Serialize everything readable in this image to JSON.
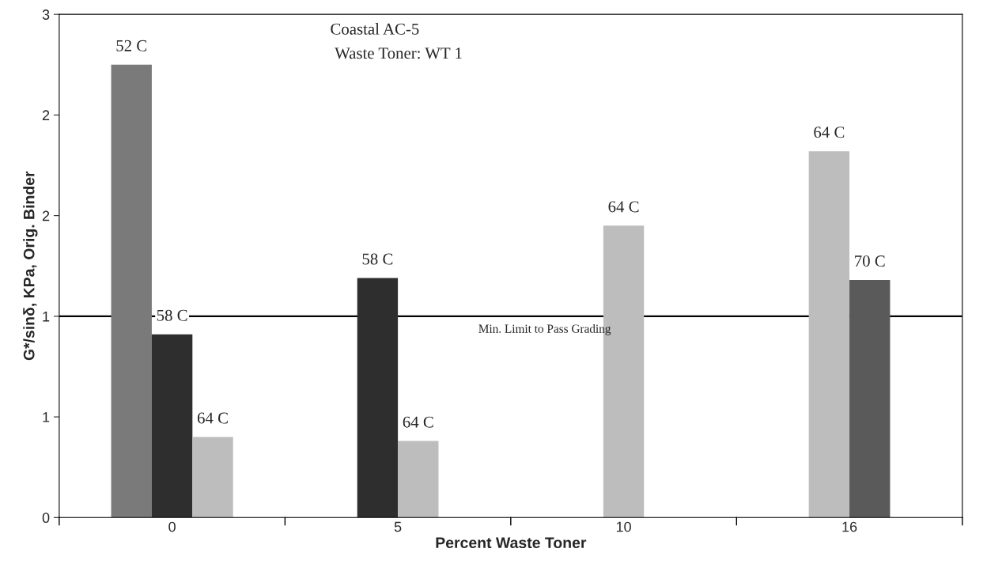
{
  "chart_data": {
    "type": "bar",
    "xlabel": "Percent Waste Toner",
    "ylabel": "G*/sinδ, KPa, Orig. Binder",
    "categories": [
      "0",
      "5",
      "10",
      "16"
    ],
    "series": [
      {
        "name": "52 C",
        "color": "#7a7a7a",
        "values": [
          2.25,
          null,
          null,
          null
        ]
      },
      {
        "name": "58 C",
        "color": "#2e2e2e",
        "values": [
          0.91,
          1.19,
          null,
          null
        ]
      },
      {
        "name": "64 C",
        "color": "#bdbdbd",
        "values": [
          0.4,
          0.38,
          1.45,
          1.82
        ]
      },
      {
        "name": "70 C",
        "color": "#5a5a5a",
        "values": [
          null,
          null,
          null,
          1.18
        ]
      }
    ],
    "ylim": [
      0,
      2.5
    ],
    "yticks": [
      0,
      {
        "value": 0.5,
        "label": "1"
      },
      1,
      {
        "value": 1.5,
        "label": "2"
      },
      2,
      {
        "value": 2.5,
        "label": "3"
      }
    ],
    "ref_lines": [
      {
        "axis": "y",
        "value": 1,
        "label": "Min. Limit to Pass Grading"
      }
    ],
    "annotations": [
      "Coastal AC-5",
      "Waste Toner: WT 1"
    ],
    "grid": false,
    "legend": false
  }
}
